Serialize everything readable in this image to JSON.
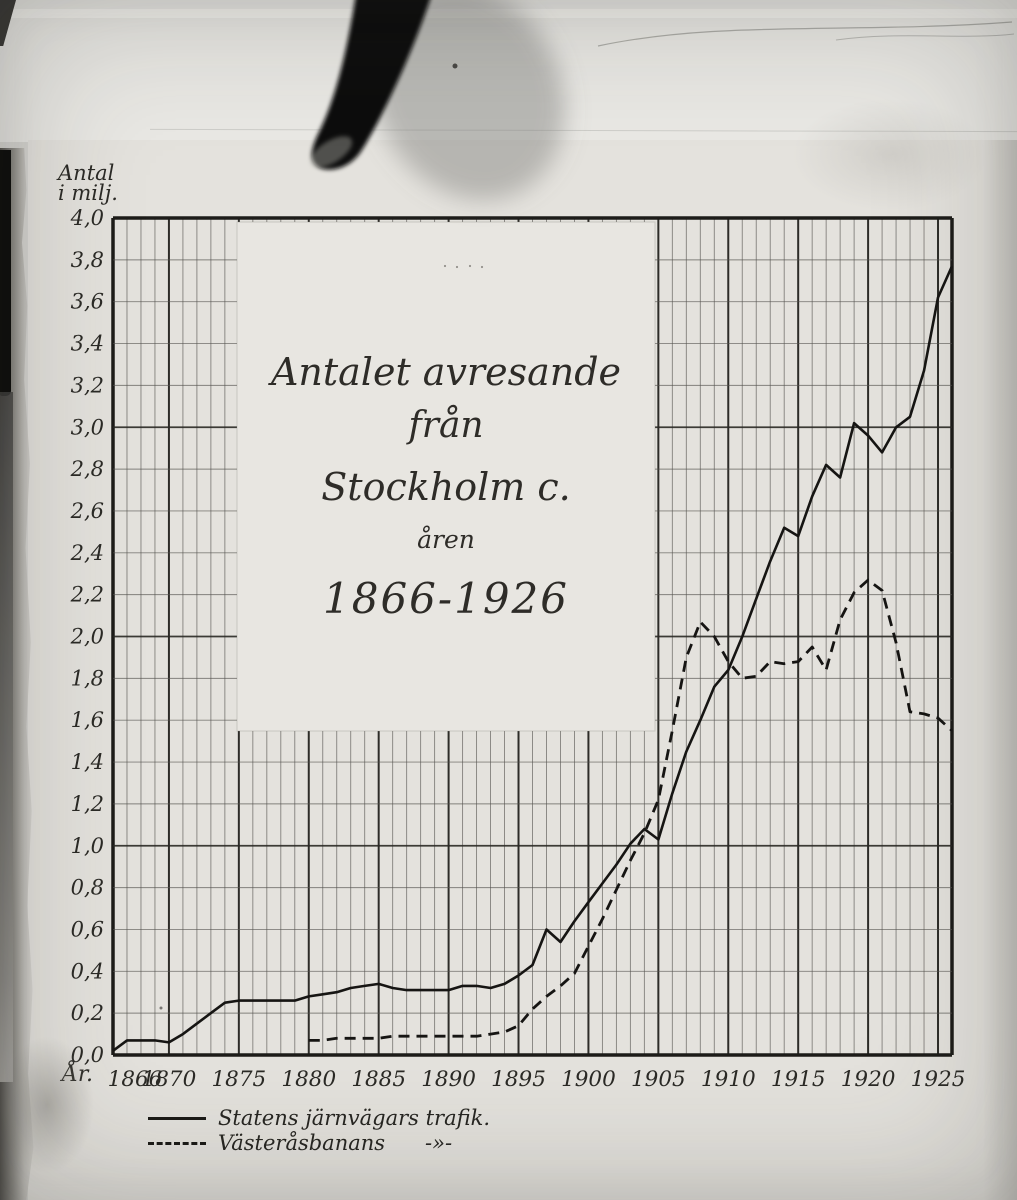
{
  "chart_data": {
    "type": "line",
    "title_lines": [
      "Antalet avresande",
      "från",
      "Stockholm c.",
      "åren",
      "1866-1926"
    ],
    "y_axis": {
      "label": "Antal\ni milj.",
      "range": [
        0.0,
        4.0
      ],
      "step": 0.2,
      "ticks": [
        "4,0",
        "3,8",
        "3,6",
        "3,4",
        "3,2",
        "3,0",
        "2,8",
        "2,6",
        "2,4",
        "2,2",
        "2,0",
        "1,8",
        "1,6",
        "1,4",
        "1,2",
        "1,0",
        "0,8",
        "0,6",
        "0,4",
        "0,2",
        "0,0"
      ]
    },
    "x_axis": {
      "label": "År.",
      "range": [
        1866,
        1926
      ],
      "ticks": [
        "1866",
        "1870",
        "1875",
        "1880",
        "1885",
        "1890",
        "1895",
        "1900",
        "1905",
        "1910",
        "1915",
        "1920",
        "1925"
      ]
    },
    "grid": true,
    "legend_position": "bottom-left",
    "series": [
      {
        "name": "Statens järnvägars trafik.",
        "style": "solid",
        "start_year": 1866,
        "values": [
          0.02,
          0.07,
          0.07,
          0.07,
          0.06,
          0.1,
          0.15,
          0.2,
          0.25,
          0.26,
          0.26,
          0.26,
          0.26,
          0.26,
          0.28,
          0.29,
          0.3,
          0.32,
          0.33,
          0.34,
          0.32,
          0.31,
          0.31,
          0.31,
          0.31,
          0.33,
          0.33,
          0.32,
          0.34,
          0.38,
          0.43,
          0.6,
          0.54,
          0.64,
          0.73,
          0.82,
          0.91,
          1.01,
          1.08,
          1.03,
          1.25,
          1.45,
          1.6,
          1.76,
          1.84,
          2.0,
          2.18,
          2.36,
          2.52,
          2.48,
          2.67,
          2.82,
          2.76,
          3.02,
          2.96,
          2.88,
          3.0,
          3.05,
          3.27,
          3.62,
          3.77
        ]
      },
      {
        "name": "Västeråsbanans",
        "ditto": "-»-",
        "style": "dashed",
        "start_year": 1880,
        "values": [
          0.07,
          0.07,
          0.08,
          0.08,
          0.08,
          0.08,
          0.09,
          0.09,
          0.09,
          0.09,
          0.09,
          0.09,
          0.09,
          0.1,
          0.11,
          0.14,
          0.22,
          0.28,
          0.33,
          0.39,
          0.52,
          0.65,
          0.79,
          0.93,
          1.06,
          1.22,
          1.55,
          1.9,
          2.07,
          2.0,
          1.88,
          1.8,
          1.81,
          1.88,
          1.87,
          1.88,
          1.95,
          1.84,
          2.08,
          2.21,
          2.27,
          2.22,
          1.97,
          1.64,
          1.63,
          1.61,
          1.55
        ]
      }
    ]
  }
}
